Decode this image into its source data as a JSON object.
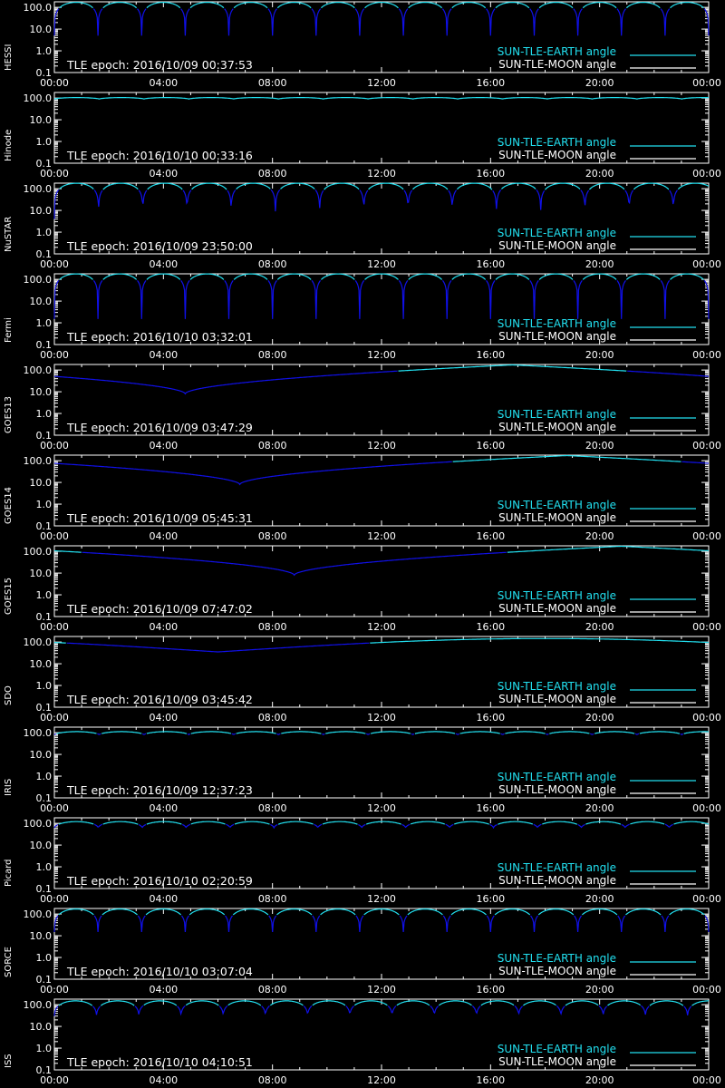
{
  "ylabels": [
    "100.0",
    "10.0",
    "1.0",
    "0.1"
  ],
  "xlabels": [
    "00:00",
    "04:00",
    "08:00",
    "12:00",
    "16:00",
    "20:00",
    "00:00"
  ],
  "legend": {
    "earth": "SUN-TLE-EARTH angle",
    "moon": "SUN-TLE-MOON angle"
  },
  "colors": {
    "earth": "#22e0f0",
    "moon": "#ffffff",
    "dark_segment": "#1010e8",
    "axis": "#ffffff",
    "background": "#000000"
  },
  "chart_data": [
    {
      "type": "line",
      "satellite": "HESSI",
      "epoch_text": "TLE epoch: 2016/10/09 00:37:53",
      "yscale": "log",
      "ylim": [
        0.1,
        180
      ],
      "x_range_hours": [
        0,
        24
      ],
      "orbits_per_day": 15.0,
      "min_angle": 5,
      "max_angle": 170
    },
    {
      "type": "line",
      "satellite": "Hinode",
      "epoch_text": "TLE epoch: 2016/10/10 00:33:16",
      "yscale": "log",
      "ylim": [
        0.1,
        180
      ],
      "x_range_hours": [
        0,
        24
      ],
      "orbits_per_day": 14.6,
      "min_angle": 90,
      "max_angle": 105
    },
    {
      "type": "line",
      "satellite": "NuSTAR",
      "epoch_text": "TLE epoch: 2016/10/09 23:50:00",
      "yscale": "log",
      "ylim": [
        0.1,
        180
      ],
      "x_range_hours": [
        0,
        24
      ],
      "orbits_per_day": 14.8,
      "min_angle": 4,
      "max_angle": 178
    },
    {
      "type": "line",
      "satellite": "Fermi",
      "epoch_text": "TLE epoch: 2016/10/10 03:32:01",
      "yscale": "log",
      "ylim": [
        0.1,
        180
      ],
      "x_range_hours": [
        0,
        24
      ],
      "orbits_per_day": 15.0,
      "min_angle": 1.5,
      "max_angle": 178
    },
    {
      "type": "line",
      "satellite": "GOES13",
      "epoch_text": "TLE epoch: 2016/10/09 03:47:29",
      "yscale": "log",
      "ylim": [
        0.1,
        180
      ],
      "x_range_hours": [
        0,
        24
      ],
      "min_angle": 8,
      "min_hour": 4.8,
      "max_angle": 172,
      "max_hour": 16.8
    },
    {
      "type": "line",
      "satellite": "GOES14",
      "epoch_text": "TLE epoch: 2016/10/09 05:45:31",
      "yscale": "log",
      "ylim": [
        0.1,
        180
      ],
      "x_range_hours": [
        0,
        24
      ],
      "min_angle": 8,
      "min_hour": 6.8,
      "max_angle": 172,
      "max_hour": 18.8
    },
    {
      "type": "line",
      "satellite": "GOES15",
      "epoch_text": "TLE epoch: 2016/10/09 07:47:02",
      "yscale": "log",
      "ylim": [
        0.1,
        180
      ],
      "x_range_hours": [
        0,
        24
      ],
      "min_angle": 8,
      "min_hour": 8.8,
      "max_angle": 172,
      "max_hour": 20.8
    },
    {
      "type": "line",
      "satellite": "SDO",
      "epoch_text": "TLE epoch: 2016/10/09 03:45:42",
      "yscale": "log",
      "ylim": [
        0.1,
        180
      ],
      "x_range_hours": [
        0,
        24
      ],
      "min_angle": 35,
      "min_hour": 6.0,
      "max_angle": 145,
      "max_hour": 18.0
    },
    {
      "type": "line",
      "satellite": "IRIS",
      "epoch_text": "TLE epoch: 2016/10/09 12:37:23",
      "yscale": "log",
      "ylim": [
        0.1,
        180
      ],
      "x_range_hours": [
        0,
        24
      ],
      "orbits_per_day": 14.6,
      "min_angle": 80,
      "max_angle": 112
    },
    {
      "type": "line",
      "satellite": "Picard",
      "epoch_text": "TLE epoch: 2016/10/10 02:20:59",
      "yscale": "log",
      "ylim": [
        0.1,
        180
      ],
      "x_range_hours": [
        0,
        24
      ],
      "orbits_per_day": 14.9,
      "min_angle": 62,
      "max_angle": 120
    },
    {
      "type": "line",
      "satellite": "SORCE",
      "epoch_text": "TLE epoch: 2016/10/10 03:07:04",
      "yscale": "log",
      "ylim": [
        0.1,
        180
      ],
      "x_range_hours": [
        0,
        24
      ],
      "orbits_per_day": 15.0,
      "min_angle": 15,
      "max_angle": 170
    },
    {
      "type": "line",
      "satellite": "ISS",
      "epoch_text": "TLE epoch: 2016/10/10 04:10:51",
      "yscale": "log",
      "ylim": [
        0.1,
        180
      ],
      "x_range_hours": [
        0,
        24
      ],
      "orbits_per_day": 15.5,
      "min_angle": 30,
      "max_angle": 150
    }
  ]
}
